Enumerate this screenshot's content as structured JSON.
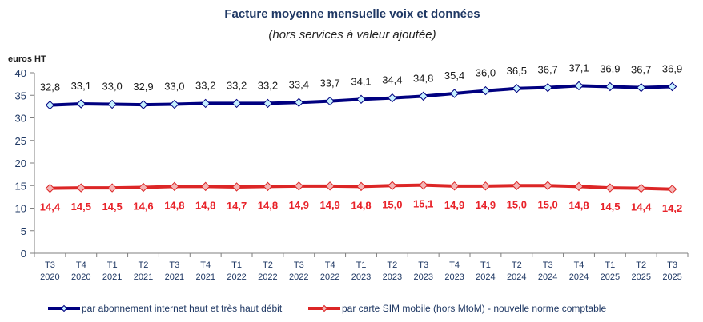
{
  "chart_data": {
    "type": "line",
    "title": "Facture moyenne mensuelle voix et données",
    "subtitle": "(hors services à valeur ajoutée)",
    "ylabel": "euros HT",
    "xlabel": "",
    "ylim": [
      0,
      40
    ],
    "yticks": [
      0,
      5,
      10,
      15,
      20,
      25,
      30,
      35,
      40
    ],
    "grid": false,
    "legend_position": "bottom",
    "categories": [
      [
        "T3",
        "2020"
      ],
      [
        "T4",
        "2020"
      ],
      [
        "T1",
        "2021"
      ],
      [
        "T2",
        "2021"
      ],
      [
        "T3",
        "2021"
      ],
      [
        "T4",
        "2021"
      ],
      [
        "T1",
        "2022"
      ],
      [
        "T2",
        "2022"
      ],
      [
        "T3",
        "2022"
      ],
      [
        "T4",
        "2022"
      ],
      [
        "T1",
        "2023"
      ],
      [
        "T2",
        "2023"
      ],
      [
        "T3",
        "2023"
      ],
      [
        "T4",
        "2023"
      ],
      [
        "T1",
        "2024"
      ],
      [
        "T2",
        "2024"
      ],
      [
        "T3",
        "2024"
      ],
      [
        "T4",
        "2024"
      ],
      [
        "T1",
        "2025"
      ],
      [
        "T2",
        "2025"
      ],
      [
        "T3",
        "2025"
      ]
    ],
    "series": [
      {
        "name": "par abonnement internet haut et très haut débit",
        "color": "#000080",
        "marker_fill": "#c6f0ff",
        "label_color": "#1a1a1a",
        "label_position": "above",
        "values": [
          32.8,
          33.1,
          33.0,
          32.9,
          33.0,
          33.2,
          33.2,
          33.2,
          33.4,
          33.7,
          34.1,
          34.4,
          34.8,
          35.4,
          36.0,
          36.5,
          36.7,
          37.1,
          36.9,
          36.7,
          36.9
        ],
        "labels": [
          "32,8",
          "33,1",
          "33,0",
          "32,9",
          "33,0",
          "33,2",
          "33,2",
          "33,2",
          "33,4",
          "33,7",
          "34,1",
          "34,4",
          "34,8",
          "35,4",
          "36,0",
          "36,5",
          "36,7",
          "37,1",
          "36,9",
          "36,7",
          "36,9"
        ]
      },
      {
        "name": "par carte SIM mobile (hors MtoM)  - nouvelle norme comptable",
        "color": "#dc2626",
        "marker_fill": "#f4b6b6",
        "label_color": "#e8232a",
        "label_position": "below",
        "values": [
          14.4,
          14.5,
          14.5,
          14.6,
          14.8,
          14.8,
          14.7,
          14.8,
          14.9,
          14.9,
          14.8,
          15.0,
          15.1,
          14.9,
          14.9,
          15.0,
          15.0,
          14.8,
          14.5,
          14.4,
          14.2
        ],
        "labels": [
          "14,4",
          "14,5",
          "14,5",
          "14,6",
          "14,8",
          "14,8",
          "14,7",
          "14,8",
          "14,9",
          "14,9",
          "14,8",
          "15,0",
          "15,1",
          "14,9",
          "14,9",
          "15,0",
          "15,0",
          "14,8",
          "14,5",
          "14,4",
          "14,2"
        ]
      }
    ]
  }
}
